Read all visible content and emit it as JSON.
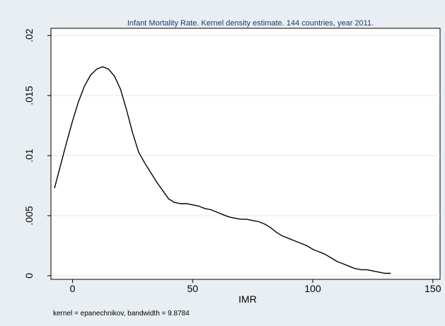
{
  "chart_data": {
    "type": "line",
    "title": "Infant Mortality Rate. Kernel density estimate. 144 countries, year 2011.",
    "xlabel": "IMR",
    "ylabel": "",
    "note": "kernel = epanechnikov, bandwidth = 9.8784",
    "xlim": [
      -9,
      153
    ],
    "ylim": [
      -0.0003,
      0.0206
    ],
    "xticks": [
      0,
      50,
      100,
      150
    ],
    "xtick_labels": [
      "0",
      "50",
      "100",
      "150"
    ],
    "yticks": [
      0,
      0.005,
      0.01,
      0.015,
      0.02
    ],
    "ytick_labels": [
      "0",
      ".005",
      ".01",
      ".015",
      ".02"
    ],
    "grid": true,
    "line_color": "#000000",
    "series": [
      {
        "x": [
          -7.5,
          -5.0,
          -2.5,
          0.0,
          2.5,
          5.0,
          7.5,
          10.0,
          12.5,
          15.0,
          17.5,
          20.0,
          22.5,
          25.0,
          27.5,
          30.0,
          32.5,
          35.0,
          37.5,
          40.0,
          42.5,
          45.0,
          47.5,
          50.0,
          52.5,
          55.0,
          57.5,
          60.0,
          62.5,
          65.0,
          67.5,
          70.0,
          72.5,
          75.0,
          77.5,
          80.0,
          82.5,
          85.0,
          87.5,
          90.0,
          92.5,
          95.0,
          97.5,
          100.0,
          102.5,
          105.0,
          107.5,
          110.0,
          112.5,
          115.0,
          117.5,
          120.0,
          122.5,
          125.0,
          127.5,
          130.0,
          132.5
        ],
        "y": [
          0.0073,
          0.0092,
          0.0111,
          0.0129,
          0.0145,
          0.0158,
          0.0167,
          0.0172,
          0.0174,
          0.0172,
          0.0166,
          0.0155,
          0.0138,
          0.0119,
          0.0103,
          0.0094,
          0.0086,
          0.0078,
          0.0071,
          0.0064,
          0.0061,
          0.006,
          0.006,
          0.0059,
          0.0058,
          0.0056,
          0.0055,
          0.0053,
          0.0051,
          0.0049,
          0.0048,
          0.0047,
          0.0047,
          0.0046,
          0.0045,
          0.0043,
          0.004,
          0.0036,
          0.0033,
          0.0031,
          0.0029,
          0.0027,
          0.0025,
          0.0022,
          0.002,
          0.0018,
          0.0015,
          0.0012,
          0.001,
          0.0008,
          0.0006,
          0.0005,
          0.0005,
          0.0004,
          0.0003,
          0.0002,
          0.0002
        ]
      }
    ]
  }
}
